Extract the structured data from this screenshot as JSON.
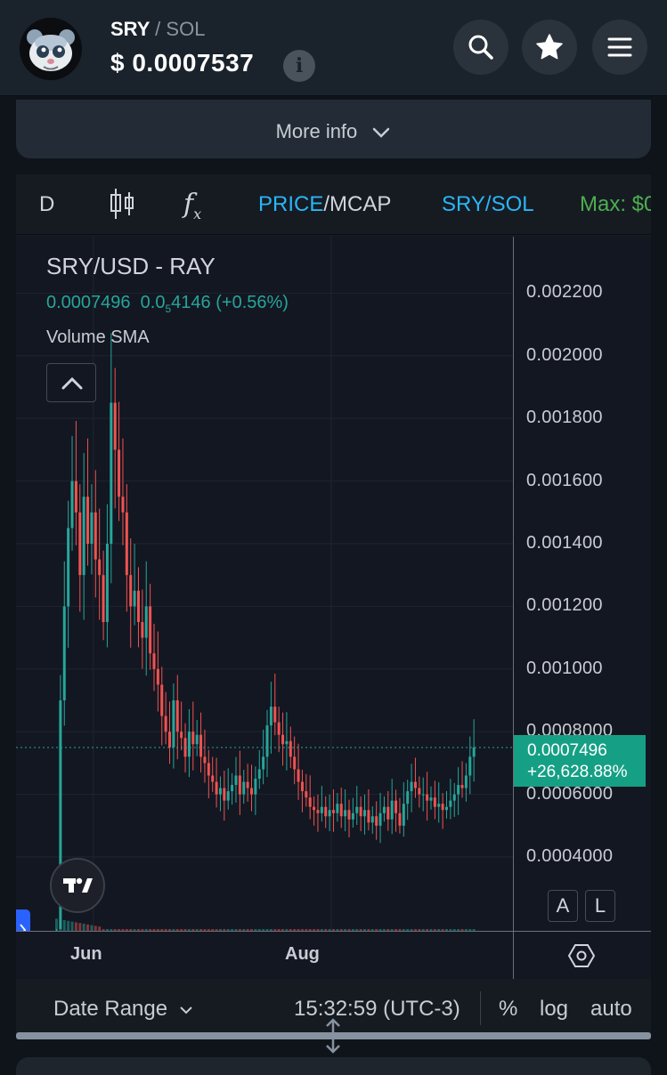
{
  "header": {
    "base_symbol": "SRY",
    "separator": "/",
    "quote_symbol": "SOL",
    "currency_sign": "$",
    "price": "0.0007537",
    "info_icon": "info-icon",
    "info_glyph": "i",
    "buttons": [
      "search-icon",
      "star-icon",
      "menu-icon"
    ]
  },
  "more_info": {
    "label": "More info"
  },
  "toolbar": {
    "interval": "D",
    "indicators_icon": "candles-icon",
    "fx_glyph": "f",
    "fx_sub": "x",
    "price_label": "PRICE",
    "slash": "/",
    "mcap_label": "MCAP",
    "pair_label": "SRY/SOL",
    "max_label": "Max: $0"
  },
  "legend": {
    "title": "SRY/USD - RAY",
    "value": "0.0007496",
    "change_prefix": "0.0",
    "change_sub": "5",
    "change_rest": "4146",
    "change_pct": "(+0.56%)",
    "volume_label": "Volume SMA"
  },
  "chart_data": {
    "type": "candlestick",
    "y_ticks": [
      "0.002200",
      "0.002000",
      "0.001800",
      "0.001600",
      "0.001400",
      "0.001200",
      "0.001000",
      "0.0008000",
      "0.0006000",
      "0.0004000"
    ],
    "ylim": [
      0.00017,
      0.00238
    ],
    "x_ticks": [
      {
        "label": "Jun",
        "bar": 10
      },
      {
        "label": "Aug",
        "bar": 71
      }
    ],
    "last_price": "0.0007496",
    "last_change": "+26,628.88%",
    "close": [
      2e-05,
      0.0009,
      0.0012,
      0.00145,
      0.0016,
      0.0015,
      0.0013,
      0.00155,
      0.0014,
      0.0015,
      0.00135,
      0.0013,
      0.00115,
      0.0014,
      0.00185,
      0.0017,
      0.00155,
      0.0015,
      0.0013,
      0.0012,
      0.00125,
      0.00115,
      0.0011,
      0.0012,
      0.00105,
      0.001,
      0.00095,
      0.00085,
      0.0008,
      0.00075,
      0.0009,
      0.0008,
      0.00078,
      0.00072,
      0.0008,
      0.00076,
      0.00079,
      0.00072,
      0.0007,
      0.00066,
      0.00064,
      0.0006,
      0.00062,
      0.00058,
      0.00061,
      0.00063,
      0.00066,
      0.0006,
      0.00064,
      0.00062,
      0.0006,
      0.00065,
      0.00068,
      0.00072,
      0.00082,
      0.00088,
      0.00083,
      0.00079,
      0.00076,
      0.00077,
      0.00072,
      0.00068,
      0.00064,
      0.00061,
      0.00059,
      0.00056,
      0.00055,
      0.00054,
      0.00056,
      0.00053,
      0.00055,
      0.00054,
      0.00057,
      0.00053,
      0.00055,
      0.00052,
      0.00054,
      0.00056,
      0.00053,
      0.00055,
      0.00051,
      0.00053,
      0.0005,
      0.00054,
      0.00056,
      0.00052,
      0.00058,
      0.00054,
      0.0005,
      0.00057,
      0.00061,
      0.00064,
      0.00062,
      0.0006,
      0.0006,
      0.00058,
      0.00059,
      0.00056,
      0.00057,
      0.00055,
      0.00056,
      0.00058,
      0.0006,
      0.00063,
      0.00062,
      0.00066,
      0.00072,
      0.00075
    ],
    "volume_scale": "low"
  },
  "x_axis": {
    "labels": [
      "Jun",
      "Aug"
    ],
    "settings_icon": "hexagon-settings-icon"
  },
  "scale_buttons": {
    "a": "A",
    "l": "L"
  },
  "bottom": {
    "date_range": "Date Range",
    "time": "15:32:59 (UTC-3)",
    "percent": "%",
    "log": "log",
    "auto": "auto"
  },
  "colors": {
    "up": "#26a69a",
    "down": "#ef5350",
    "accent_blue": "#29b6f6",
    "max_green": "#4caf50"
  }
}
